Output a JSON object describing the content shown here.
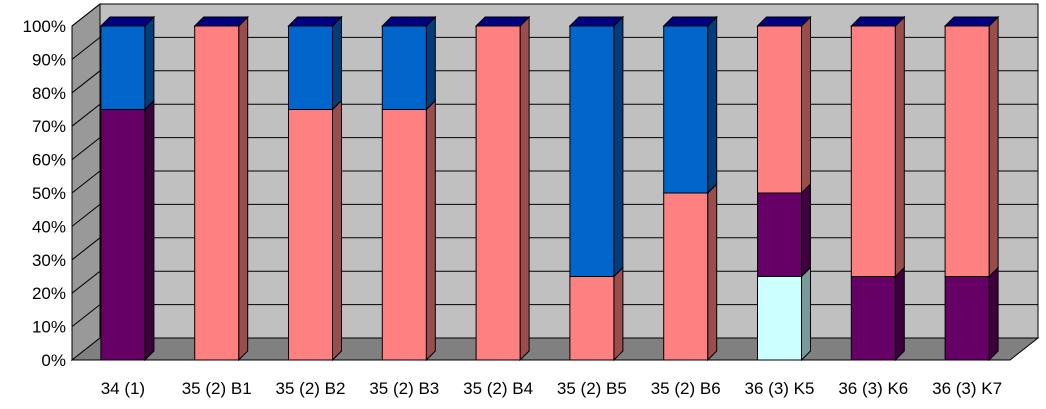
{
  "chart_data": {
    "type": "bar",
    "stacked": true,
    "percent_stacked": true,
    "three_d": true,
    "categories": [
      "34 (1)",
      "35 (2) B1",
      "35 (2) B2",
      "35 (2) B3",
      "35 (2) B4",
      "35 (2) B5",
      "35 (2) B6",
      "36 (3) K5",
      "36 (3) K6",
      "36 (3) K7"
    ],
    "series": [
      {
        "color": "#CCFFFF",
        "values": [
          0,
          0,
          0,
          0,
          0,
          0,
          0,
          25,
          0,
          0
        ]
      },
      {
        "color": "#660066",
        "values": [
          75,
          0,
          0,
          0,
          0,
          0,
          0,
          25,
          25,
          25
        ]
      },
      {
        "color": "#FF8080",
        "values": [
          0,
          100,
          75,
          75,
          100,
          25,
          50,
          50,
          75,
          75
        ]
      },
      {
        "color": "#0066CC",
        "values": [
          25,
          0,
          25,
          25,
          0,
          75,
          50,
          0,
          0,
          0
        ]
      }
    ],
    "y_ticks": [
      "0%",
      "10%",
      "20%",
      "30%",
      "40%",
      "50%",
      "60%",
      "70%",
      "80%",
      "90%",
      "100%"
    ],
    "ylim": [
      0,
      100
    ],
    "grid": true,
    "legend": "none",
    "colors": {
      "wall": "#C0C0C0",
      "floor": "#808080",
      "grid": "#000000",
      "side_wall": "#999999"
    }
  }
}
